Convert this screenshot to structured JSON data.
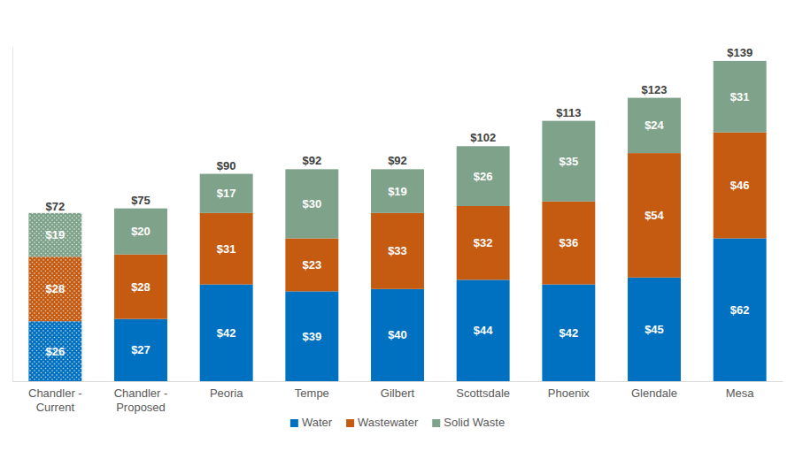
{
  "chart_data": {
    "type": "bar",
    "stacked": true,
    "data_labels": true,
    "tick_labels": "x",
    "grid": false,
    "legend": "bottom",
    "categories": [
      "Chandler - Current",
      "Chandler - Proposed",
      "Peoria",
      "Tempe",
      "Gilbert",
      "Scottsdale",
      "Phoenix",
      "Glendale",
      "Mesa"
    ],
    "series": [
      {
        "name": "Water",
        "color": "#0070c0",
        "values": [
          26,
          27,
          42,
          39,
          40,
          44,
          42,
          45,
          62
        ],
        "value_labels": [
          "$26",
          "$27",
          "$42",
          "$39",
          "$40",
          "$44",
          "$42",
          "$45",
          "$62"
        ]
      },
      {
        "name": "Wastewater",
        "color": "#c55a11",
        "values": [
          28,
          28,
          31,
          23,
          33,
          32,
          36,
          54,
          46
        ],
        "value_labels": [
          "$28",
          "$28",
          "$31",
          "$23",
          "$33",
          "$32",
          "$36",
          "$54",
          "$46"
        ]
      },
      {
        "name": "Solid Waste",
        "color": "#7fa38a",
        "values": [
          19,
          20,
          17,
          30,
          19,
          26,
          35,
          24,
          31
        ],
        "value_labels": [
          "$19",
          "$20",
          "$17",
          "$30",
          "$19",
          "$26",
          "$35",
          "$24",
          "$31"
        ]
      }
    ],
    "totals": [
      72,
      75,
      90,
      92,
      92,
      102,
      113,
      123,
      139
    ],
    "total_labels": [
      "$72",
      "$75",
      "$90",
      "$92",
      "$92",
      "$102",
      "$113",
      "$123",
      "$139"
    ],
    "ylim": [
      0,
      145
    ]
  }
}
